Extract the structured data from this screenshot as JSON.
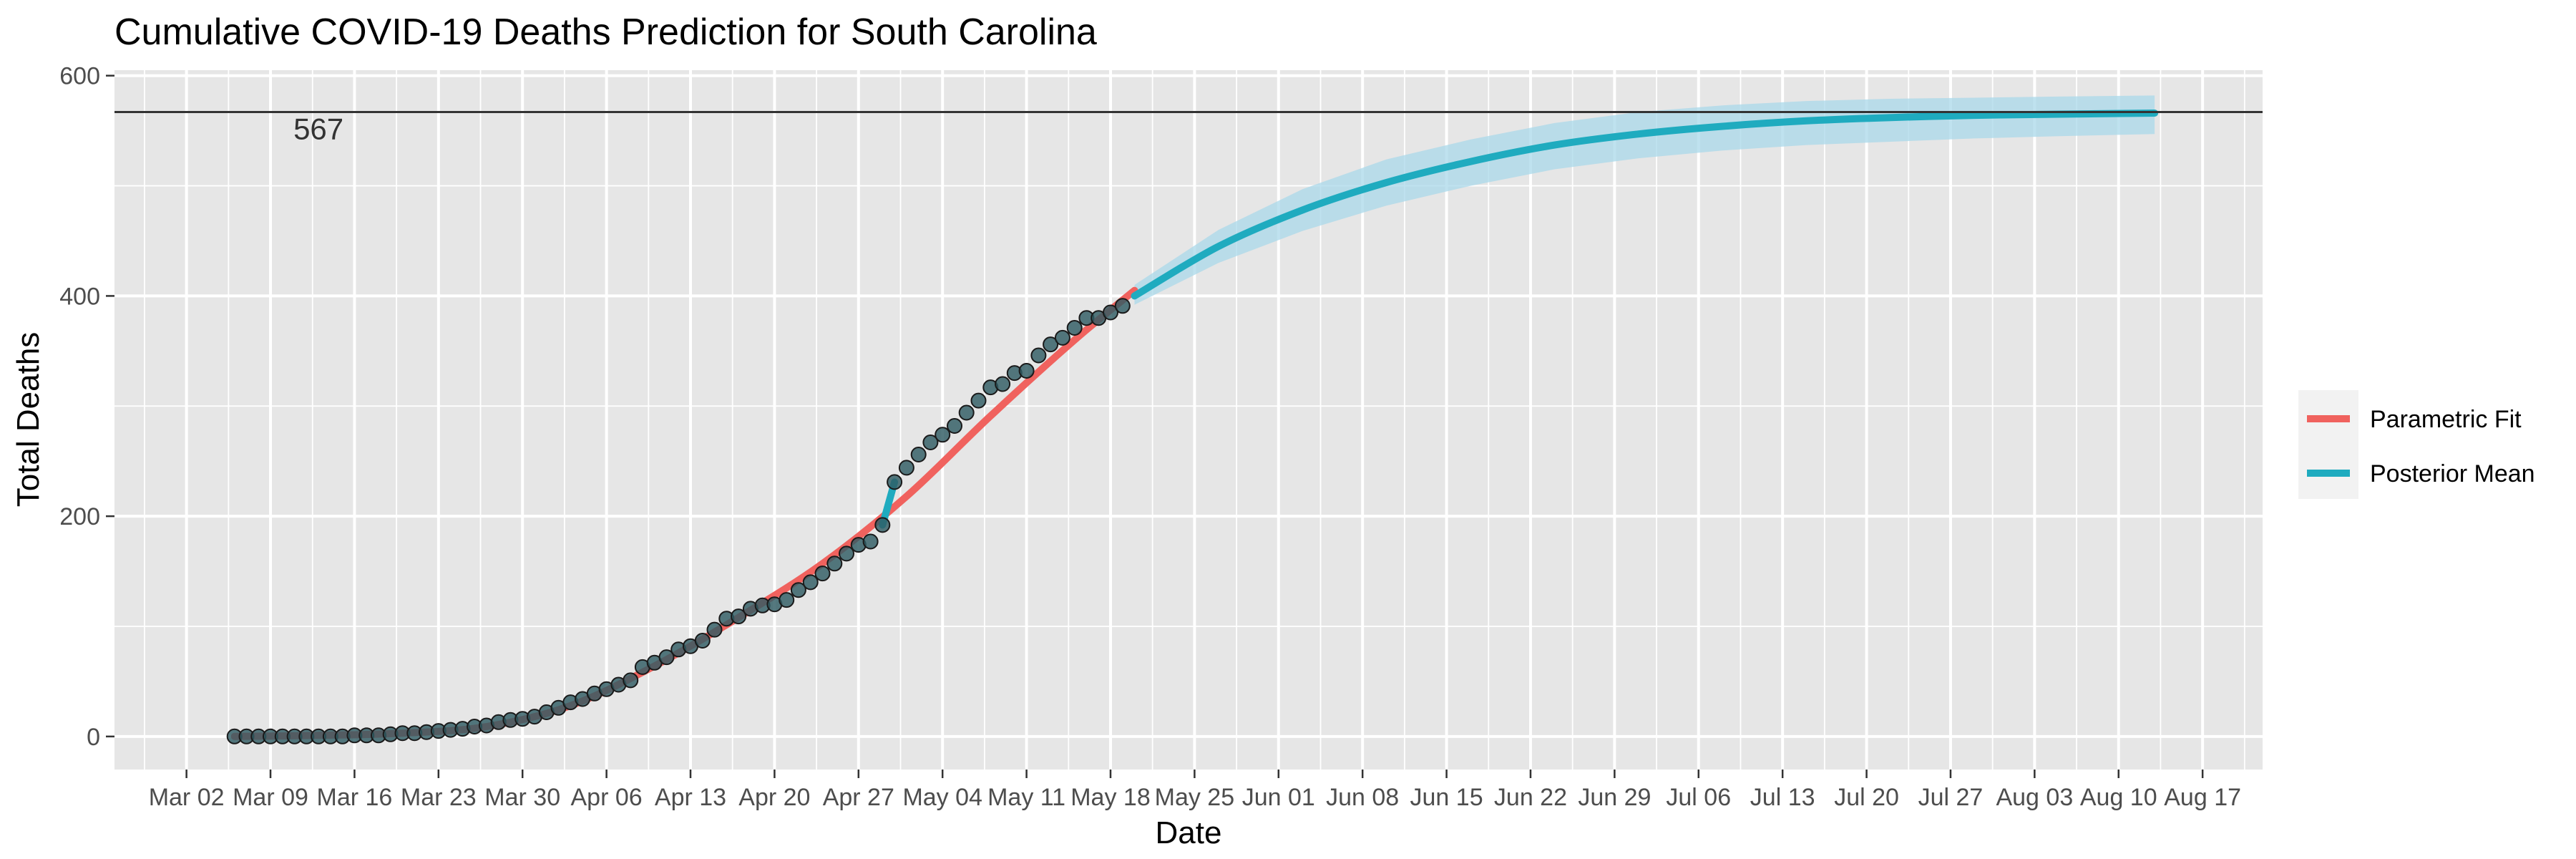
{
  "chart_data": {
    "type": "line",
    "title": "Cumulative COVID-19 Deaths Prediction for South Carolina",
    "xlabel": "Date",
    "ylabel": "Total Deaths",
    "ylim": [
      -30,
      605
    ],
    "yticks": [
      0,
      200,
      400,
      600
    ],
    "xlim": [
      "2020-02-25",
      "2020-08-22"
    ],
    "xticks": [
      {
        "date": "2020-03-02",
        "label": "Mar 02"
      },
      {
        "date": "2020-03-09",
        "label": "Mar 09"
      },
      {
        "date": "2020-03-16",
        "label": "Mar 16"
      },
      {
        "date": "2020-03-23",
        "label": "Mar 23"
      },
      {
        "date": "2020-03-30",
        "label": "Mar 30"
      },
      {
        "date": "2020-04-06",
        "label": "Apr 06"
      },
      {
        "date": "2020-04-13",
        "label": "Apr 13"
      },
      {
        "date": "2020-04-20",
        "label": "Apr 20"
      },
      {
        "date": "2020-04-27",
        "label": "Apr 27"
      },
      {
        "date": "2020-05-04",
        "label": "May 04"
      },
      {
        "date": "2020-05-11",
        "label": "May 11"
      },
      {
        "date": "2020-05-18",
        "label": "May 18"
      },
      {
        "date": "2020-05-25",
        "label": "May 25"
      },
      {
        "date": "2020-06-01",
        "label": "Jun 01"
      },
      {
        "date": "2020-06-08",
        "label": "Jun 08"
      },
      {
        "date": "2020-06-15",
        "label": "Jun 15"
      },
      {
        "date": "2020-06-22",
        "label": "Jun 22"
      },
      {
        "date": "2020-06-29",
        "label": "Jun 29"
      },
      {
        "date": "2020-07-06",
        "label": "Jul 06"
      },
      {
        "date": "2020-07-13",
        "label": "Jul 13"
      },
      {
        "date": "2020-07-20",
        "label": "Jul 20"
      },
      {
        "date": "2020-07-27",
        "label": "Jul 27"
      },
      {
        "date": "2020-08-03",
        "label": "Aug 03"
      },
      {
        "date": "2020-08-10",
        "label": "Aug 10"
      },
      {
        "date": "2020-08-17",
        "label": "Aug 17"
      }
    ],
    "hline": {
      "value": 567,
      "label": "567",
      "label_date": "2020-03-13"
    },
    "legend": {
      "position": "right",
      "entries": [
        {
          "name": "Parametric Fit",
          "color": "#f0625e"
        },
        {
          "name": "Posterior Mean",
          "color": "#1fabbf"
        }
      ]
    },
    "colors": {
      "panel": "#e6e6e6",
      "grid": "#ffffff",
      "fit": "#f0625e",
      "posterior": "#1fabbf",
      "band": "#a9d8ea",
      "point_fill": "#2f5c63",
      "point_stroke": "#1a1a1a",
      "hline": "#333333"
    },
    "observed": {
      "start_date": "2020-03-06",
      "values": [
        0,
        0,
        0,
        0,
        0,
        0,
        0,
        0,
        0,
        0,
        1,
        1,
        1,
        2,
        3,
        3,
        4,
        5,
        6,
        7,
        9,
        10,
        13,
        15,
        16,
        18,
        22,
        26,
        31,
        34,
        39,
        43,
        47,
        51,
        63,
        67,
        72,
        79,
        82,
        87,
        97,
        107,
        109,
        116,
        119,
        120,
        124,
        133,
        140,
        148,
        157,
        166,
        174,
        177,
        192,
        231,
        244,
        256,
        267,
        274,
        282,
        294,
        305,
        317,
        320,
        330,
        332,
        346,
        356,
        362,
        371,
        380,
        380,
        385,
        391
      ]
    },
    "parametric_fit": [
      [
        "2020-03-06",
        0
      ],
      [
        "2020-03-13",
        1
      ],
      [
        "2020-03-20",
        3
      ],
      [
        "2020-03-27",
        9
      ],
      [
        "2020-04-03",
        28
      ],
      [
        "2020-04-10",
        64
      ],
      [
        "2020-04-17",
        108
      ],
      [
        "2020-04-24",
        157
      ],
      [
        "2020-05-01",
        218
      ],
      [
        "2020-05-08",
        291
      ],
      [
        "2020-05-15",
        360
      ],
      [
        "2020-05-20",
        405
      ]
    ],
    "posterior_mean": [
      [
        "2020-04-29",
        192
      ],
      [
        "2020-04-30",
        231
      ],
      [
        "2020-05-20",
        400
      ],
      [
        "2020-05-27",
        445
      ],
      [
        "2020-06-03",
        478
      ],
      [
        "2020-06-10",
        503
      ],
      [
        "2020-06-17",
        522
      ],
      [
        "2020-06-24",
        537
      ],
      [
        "2020-07-01",
        547
      ],
      [
        "2020-07-08",
        554
      ],
      [
        "2020-07-15",
        559
      ],
      [
        "2020-07-22",
        562
      ],
      [
        "2020-07-29",
        564
      ],
      [
        "2020-08-05",
        565
      ],
      [
        "2020-08-13",
        566
      ]
    ],
    "posterior_band": [
      [
        "2020-05-20",
        392,
        410
      ],
      [
        "2020-05-27",
        430,
        460
      ],
      [
        "2020-06-03",
        459,
        497
      ],
      [
        "2020-06-10",
        482,
        524
      ],
      [
        "2020-06-17",
        500,
        542
      ],
      [
        "2020-06-24",
        515,
        557
      ],
      [
        "2020-07-01",
        525,
        567
      ],
      [
        "2020-07-08",
        532,
        573
      ],
      [
        "2020-07-15",
        537,
        577
      ],
      [
        "2020-07-22",
        540,
        579
      ],
      [
        "2020-07-29",
        543,
        580
      ],
      [
        "2020-08-05",
        545,
        581
      ],
      [
        "2020-08-13",
        547,
        582
      ]
    ]
  }
}
